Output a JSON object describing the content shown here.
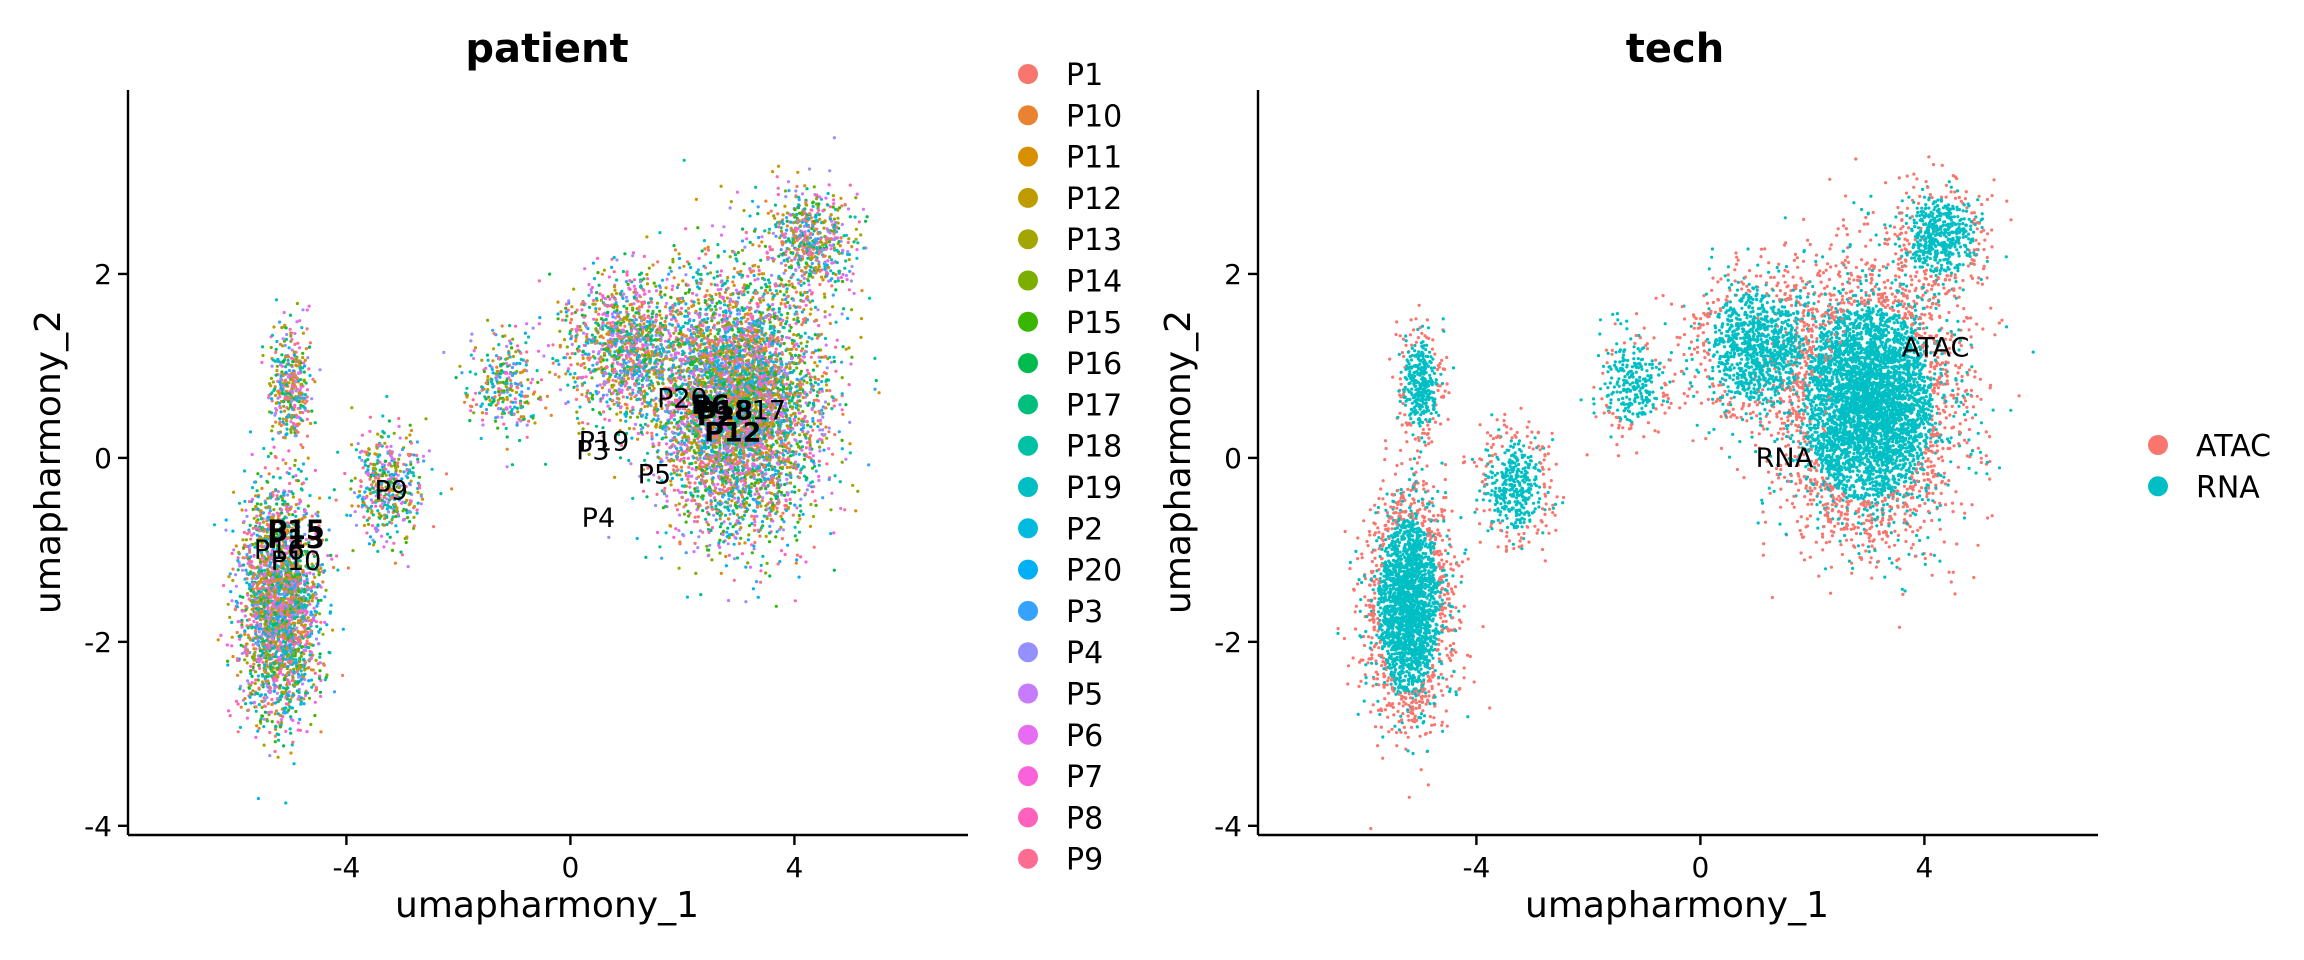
{
  "chart_data": [
    {
      "type": "scatter",
      "title": "patient",
      "xlabel": "umapharmony_1",
      "ylabel": "umapharmony_2",
      "xlim": [
        -7.9,
        7.1
      ],
      "ylim": [
        -4.1,
        4.0
      ],
      "xticks": [
        -4,
        0,
        4
      ],
      "yticks": [
        -4,
        -2,
        0,
        2
      ],
      "xtick_labels": [
        "-4",
        "0",
        "4"
      ],
      "ytick_labels": [
        "-4",
        "-2",
        "0",
        "2"
      ],
      "legend_position": "right",
      "series": [
        {
          "name": "P1",
          "color": "#F8766D"
        },
        {
          "name": "P10",
          "color": "#EA8331"
        },
        {
          "name": "P11",
          "color": "#D89000"
        },
        {
          "name": "P12",
          "color": "#C09B00"
        },
        {
          "name": "P13",
          "color": "#A3A500"
        },
        {
          "name": "P14",
          "color": "#7CAE00"
        },
        {
          "name": "P15",
          "color": "#39B600"
        },
        {
          "name": "P16",
          "color": "#00BB4E"
        },
        {
          "name": "P17",
          "color": "#00BF7D"
        },
        {
          "name": "P18",
          "color": "#00C1A3"
        },
        {
          "name": "P19",
          "color": "#00BFC4"
        },
        {
          "name": "P2",
          "color": "#00BAE0"
        },
        {
          "name": "P20",
          "color": "#00B0F6"
        },
        {
          "name": "P3",
          "color": "#35A2FF"
        },
        {
          "name": "P4",
          "color": "#9590FF"
        },
        {
          "name": "P5",
          "color": "#C77CFF"
        },
        {
          "name": "P6",
          "color": "#E76BF3"
        },
        {
          "name": "P7",
          "color": "#FA62DB"
        },
        {
          "name": "P8",
          "color": "#FF62BC"
        },
        {
          "name": "P9",
          "color": "#FF6C91"
        }
      ],
      "labels": [
        {
          "text": "P20",
          "x": 2.0,
          "y": 0.55,
          "bold": false
        },
        {
          "text": "P6",
          "x": 2.5,
          "y": 0.48,
          "bold": true
        },
        {
          "text": "P18",
          "x": 2.75,
          "y": 0.42,
          "bold": true
        },
        {
          "text": "P17",
          "x": 3.4,
          "y": 0.42,
          "bold": false
        },
        {
          "text": "P2",
          "x": 2.6,
          "y": 0.35,
          "bold": true
        },
        {
          "text": "P12",
          "x": 2.9,
          "y": 0.18,
          "bold": true
        },
        {
          "text": "P19",
          "x": 0.6,
          "y": 0.08,
          "bold": false
        },
        {
          "text": "P3",
          "x": 0.4,
          "y": -0.02,
          "bold": false
        },
        {
          "text": "P5",
          "x": 1.5,
          "y": -0.28,
          "bold": false
        },
        {
          "text": "P9",
          "x": -3.2,
          "y": -0.45,
          "bold": false
        },
        {
          "text": "P4",
          "x": 0.5,
          "y": -0.75,
          "bold": false
        },
        {
          "text": "P15",
          "x": -4.9,
          "y": -0.88,
          "bold": true
        },
        {
          "text": "P13",
          "x": -4.9,
          "y": -0.98,
          "bold": true
        },
        {
          "text": "P16",
          "x": -5.2,
          "y": -1.1,
          "bold": false
        },
        {
          "text": "P10",
          "x": -4.9,
          "y": -1.22,
          "bold": false
        }
      ]
    },
    {
      "type": "scatter",
      "title": "tech",
      "xlabel": "umapharmony_1",
      "ylabel": "umapharmony_2",
      "xlim": [
        -7.9,
        7.1
      ],
      "ylim": [
        -4.1,
        4.0
      ],
      "xticks": [
        -4,
        0,
        4
      ],
      "yticks": [
        -4,
        -2,
        0,
        2
      ],
      "xtick_labels": [
        "-4",
        "0",
        "4"
      ],
      "ytick_labels": [
        "-4",
        "-2",
        "0",
        "2"
      ],
      "legend_position": "right",
      "series": [
        {
          "name": "ATAC",
          "color": "#F8766D"
        },
        {
          "name": "RNA",
          "color": "#00BFC4"
        }
      ],
      "labels": [
        {
          "text": "ATAC",
          "x": 4.2,
          "y": 1.1,
          "bold": false
        },
        {
          "text": "RNA",
          "x": 1.5,
          "y": -0.1,
          "bold": false
        }
      ]
    }
  ]
}
